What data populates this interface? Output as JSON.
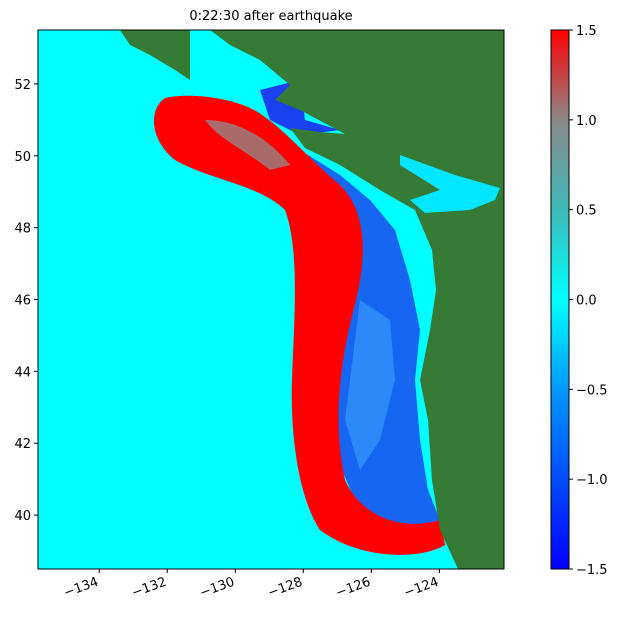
{
  "chart_data": {
    "type": "heatmap",
    "title": "0:22:30 after earthquake",
    "xlim": [
      -135.8,
      -122.1
    ],
    "ylim": [
      38.5,
      53.5
    ],
    "xticks": [
      {
        "value": -134,
        "label": "−134"
      },
      {
        "value": -132,
        "label": "−132"
      },
      {
        "value": -130,
        "label": "−130"
      },
      {
        "value": -128,
        "label": "−128"
      },
      {
        "value": -126,
        "label": "−126"
      },
      {
        "value": -124,
        "label": "−124"
      }
    ],
    "yticks": [
      40,
      42,
      44,
      46,
      48,
      50,
      52
    ],
    "colorbar": {
      "lim": [
        -1.5,
        1.5
      ],
      "ticks": [
        {
          "value": -1.5,
          "label": "−1.5"
        },
        {
          "value": -1.0,
          "label": "−1.0"
        },
        {
          "value": -0.5,
          "label": "−0.5"
        },
        {
          "value": 0.0,
          "label": "0.0"
        },
        {
          "value": 0.5,
          "label": "0.5"
        },
        {
          "value": 1.0,
          "label": "1.0"
        },
        1.5
      ]
    }
  }
}
